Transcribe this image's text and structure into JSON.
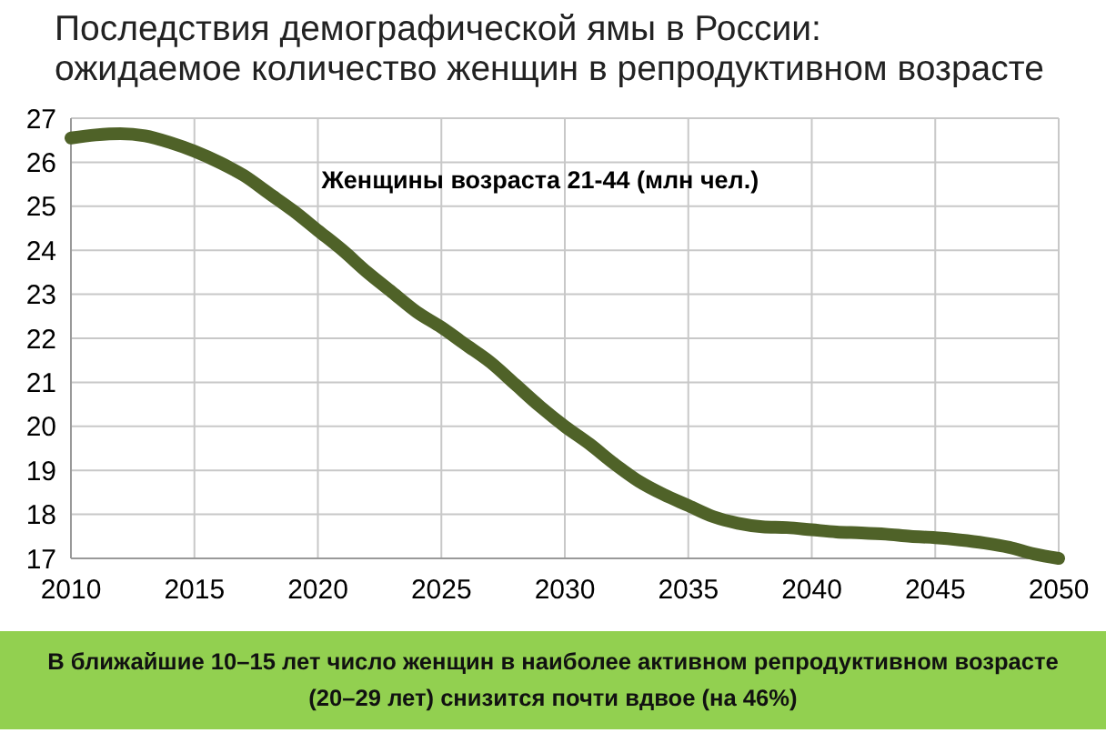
{
  "chart_data": {
    "type": "line",
    "title": "Последствия демографической ямы в России:\nожидаемое количество женщин в репродуктивном возрасте",
    "x": [
      2010,
      2011,
      2012,
      2013,
      2014,
      2015,
      2016,
      2017,
      2018,
      2019,
      2020,
      2021,
      2022,
      2023,
      2024,
      2025,
      2026,
      2027,
      2028,
      2029,
      2030,
      2031,
      2032,
      2033,
      2034,
      2035,
      2036,
      2037,
      2038,
      2039,
      2040,
      2041,
      2042,
      2043,
      2044,
      2045,
      2046,
      2047,
      2048,
      2049,
      2050
    ],
    "series": [
      {
        "color": "#4f6228",
        "values": [
          26.55,
          26.62,
          26.65,
          26.6,
          26.45,
          26.25,
          26.0,
          25.7,
          25.3,
          24.9,
          24.45,
          24.0,
          23.5,
          23.05,
          22.6,
          22.25,
          21.85,
          21.45,
          20.95,
          20.45,
          20.0,
          19.6,
          19.15,
          18.75,
          18.45,
          18.2,
          17.95,
          17.8,
          17.72,
          17.7,
          17.65,
          17.6,
          17.58,
          17.55,
          17.5,
          17.47,
          17.42,
          17.35,
          17.25,
          17.1,
          17.0
        ]
      }
    ],
    "xlim": [
      2010,
      2050
    ],
    "xticks": [
      2010,
      2015,
      2020,
      2025,
      2030,
      2035,
      2040,
      2045,
      2050
    ],
    "ylim": [
      17,
      27
    ],
    "yticks": [
      17,
      18,
      19,
      20,
      21,
      22,
      23,
      24,
      25,
      26,
      27
    ],
    "grid": true,
    "marker": "none",
    "line_style": "solid",
    "annotations": [
      "Женщины возраста 21-44 (млн чел.)",
      "В ближайшие 10–15 лет число женщин в наиболее активном репродуктивном возрасте\n(20–29 лет) снизится почти вдвое (на 46%)"
    ]
  }
}
